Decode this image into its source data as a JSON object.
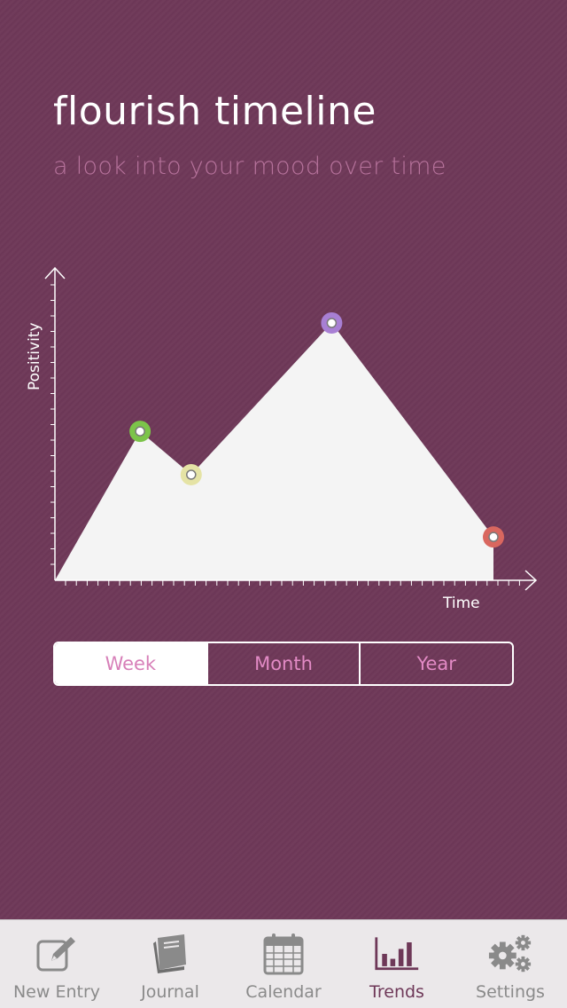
{
  "header": {
    "title": "flourish timeline",
    "subtitle": "a look into your mood over time"
  },
  "chart_data": {
    "type": "area",
    "xlabel": "Time",
    "ylabel": "Positivity",
    "points": [
      {
        "x": 0,
        "y": 0
      },
      {
        "x": 1,
        "y": 0.55,
        "marker": "#7cc44a"
      },
      {
        "x": 1.6,
        "y": 0.39,
        "marker": "#e5e3a5"
      },
      {
        "x": 3.25,
        "y": 0.95,
        "marker": "#a87fd4"
      },
      {
        "x": 5.15,
        "y": 0.16,
        "marker": "#d9675f"
      },
      {
        "x": 5.15,
        "y": 0
      }
    ],
    "xlim": [
      0,
      5.7
    ],
    "ylim": [
      0,
      1.1
    ],
    "fill": "#f4f4f4",
    "grid": false
  },
  "range_selector": {
    "options": [
      "Week",
      "Month",
      "Year"
    ],
    "selected": "Week"
  },
  "tabbar": {
    "items": [
      {
        "label": "New Entry",
        "icon": "new-entry-icon"
      },
      {
        "label": "Journal",
        "icon": "journal-icon"
      },
      {
        "label": "Calendar",
        "icon": "calendar-icon"
      },
      {
        "label": "Trends",
        "icon": "trends-icon"
      },
      {
        "label": "Settings",
        "icon": "settings-icon"
      }
    ],
    "active": "Trends"
  },
  "colors": {
    "background": "#6e3858",
    "accent": "#d77fb8",
    "tab_active": "#6e3858",
    "tab_inactive": "#8a8a8a"
  }
}
